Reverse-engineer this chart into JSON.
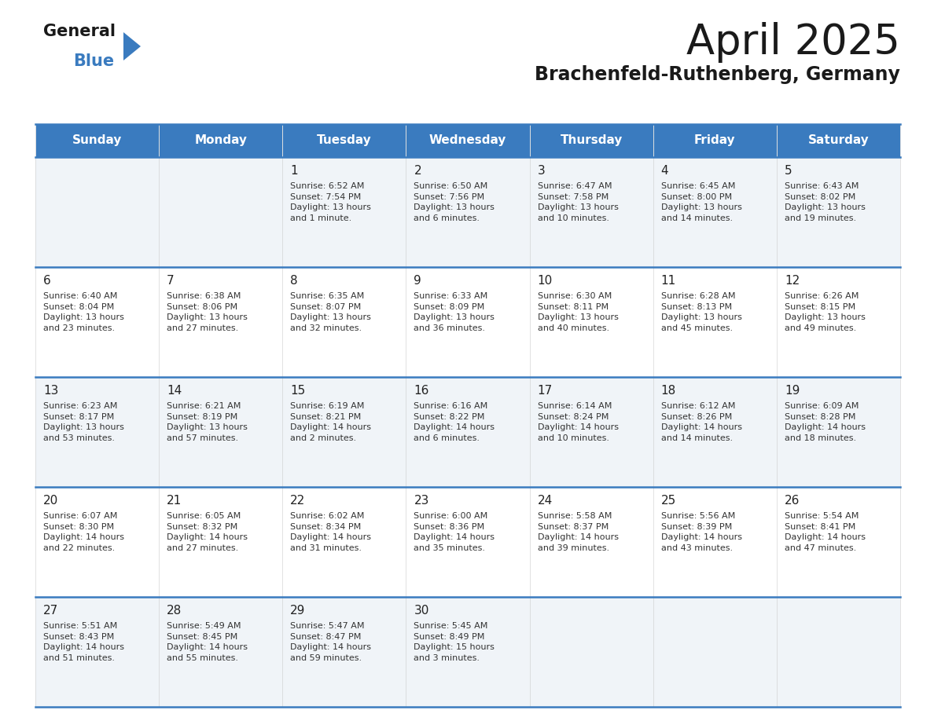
{
  "title": "April 2025",
  "subtitle": "Brachenfeld-Ruthenberg, Germany",
  "header_bg": "#3a7bbf",
  "header_text": "#ffffff",
  "cell_bg_odd": "#f0f4f8",
  "cell_bg_even": "#ffffff",
  "day_number_color": "#222222",
  "cell_text_color": "#333333",
  "line_color": "#3a7bbf",
  "days_of_week": [
    "Sunday",
    "Monday",
    "Tuesday",
    "Wednesday",
    "Thursday",
    "Friday",
    "Saturday"
  ],
  "weeks": [
    [
      {
        "day": "",
        "info": ""
      },
      {
        "day": "",
        "info": ""
      },
      {
        "day": "1",
        "info": "Sunrise: 6:52 AM\nSunset: 7:54 PM\nDaylight: 13 hours\nand 1 minute."
      },
      {
        "day": "2",
        "info": "Sunrise: 6:50 AM\nSunset: 7:56 PM\nDaylight: 13 hours\nand 6 minutes."
      },
      {
        "day": "3",
        "info": "Sunrise: 6:47 AM\nSunset: 7:58 PM\nDaylight: 13 hours\nand 10 minutes."
      },
      {
        "day": "4",
        "info": "Sunrise: 6:45 AM\nSunset: 8:00 PM\nDaylight: 13 hours\nand 14 minutes."
      },
      {
        "day": "5",
        "info": "Sunrise: 6:43 AM\nSunset: 8:02 PM\nDaylight: 13 hours\nand 19 minutes."
      }
    ],
    [
      {
        "day": "6",
        "info": "Sunrise: 6:40 AM\nSunset: 8:04 PM\nDaylight: 13 hours\nand 23 minutes."
      },
      {
        "day": "7",
        "info": "Sunrise: 6:38 AM\nSunset: 8:06 PM\nDaylight: 13 hours\nand 27 minutes."
      },
      {
        "day": "8",
        "info": "Sunrise: 6:35 AM\nSunset: 8:07 PM\nDaylight: 13 hours\nand 32 minutes."
      },
      {
        "day": "9",
        "info": "Sunrise: 6:33 AM\nSunset: 8:09 PM\nDaylight: 13 hours\nand 36 minutes."
      },
      {
        "day": "10",
        "info": "Sunrise: 6:30 AM\nSunset: 8:11 PM\nDaylight: 13 hours\nand 40 minutes."
      },
      {
        "day": "11",
        "info": "Sunrise: 6:28 AM\nSunset: 8:13 PM\nDaylight: 13 hours\nand 45 minutes."
      },
      {
        "day": "12",
        "info": "Sunrise: 6:26 AM\nSunset: 8:15 PM\nDaylight: 13 hours\nand 49 minutes."
      }
    ],
    [
      {
        "day": "13",
        "info": "Sunrise: 6:23 AM\nSunset: 8:17 PM\nDaylight: 13 hours\nand 53 minutes."
      },
      {
        "day": "14",
        "info": "Sunrise: 6:21 AM\nSunset: 8:19 PM\nDaylight: 13 hours\nand 57 minutes."
      },
      {
        "day": "15",
        "info": "Sunrise: 6:19 AM\nSunset: 8:21 PM\nDaylight: 14 hours\nand 2 minutes."
      },
      {
        "day": "16",
        "info": "Sunrise: 6:16 AM\nSunset: 8:22 PM\nDaylight: 14 hours\nand 6 minutes."
      },
      {
        "day": "17",
        "info": "Sunrise: 6:14 AM\nSunset: 8:24 PM\nDaylight: 14 hours\nand 10 minutes."
      },
      {
        "day": "18",
        "info": "Sunrise: 6:12 AM\nSunset: 8:26 PM\nDaylight: 14 hours\nand 14 minutes."
      },
      {
        "day": "19",
        "info": "Sunrise: 6:09 AM\nSunset: 8:28 PM\nDaylight: 14 hours\nand 18 minutes."
      }
    ],
    [
      {
        "day": "20",
        "info": "Sunrise: 6:07 AM\nSunset: 8:30 PM\nDaylight: 14 hours\nand 22 minutes."
      },
      {
        "day": "21",
        "info": "Sunrise: 6:05 AM\nSunset: 8:32 PM\nDaylight: 14 hours\nand 27 minutes."
      },
      {
        "day": "22",
        "info": "Sunrise: 6:02 AM\nSunset: 8:34 PM\nDaylight: 14 hours\nand 31 minutes."
      },
      {
        "day": "23",
        "info": "Sunrise: 6:00 AM\nSunset: 8:36 PM\nDaylight: 14 hours\nand 35 minutes."
      },
      {
        "day": "24",
        "info": "Sunrise: 5:58 AM\nSunset: 8:37 PM\nDaylight: 14 hours\nand 39 minutes."
      },
      {
        "day": "25",
        "info": "Sunrise: 5:56 AM\nSunset: 8:39 PM\nDaylight: 14 hours\nand 43 minutes."
      },
      {
        "day": "26",
        "info": "Sunrise: 5:54 AM\nSunset: 8:41 PM\nDaylight: 14 hours\nand 47 minutes."
      }
    ],
    [
      {
        "day": "27",
        "info": "Sunrise: 5:51 AM\nSunset: 8:43 PM\nDaylight: 14 hours\nand 51 minutes."
      },
      {
        "day": "28",
        "info": "Sunrise: 5:49 AM\nSunset: 8:45 PM\nDaylight: 14 hours\nand 55 minutes."
      },
      {
        "day": "29",
        "info": "Sunrise: 5:47 AM\nSunset: 8:47 PM\nDaylight: 14 hours\nand 59 minutes."
      },
      {
        "day": "30",
        "info": "Sunrise: 5:45 AM\nSunset: 8:49 PM\nDaylight: 15 hours\nand 3 minutes."
      },
      {
        "day": "",
        "info": ""
      },
      {
        "day": "",
        "info": ""
      },
      {
        "day": "",
        "info": ""
      }
    ]
  ],
  "logo_general_color": "#1a1a1a",
  "logo_blue_color": "#3a7bbf",
  "logo_triangle_color": "#3a7bbf",
  "title_fontsize": 38,
  "subtitle_fontsize": 17,
  "header_fontsize": 11,
  "day_num_fontsize": 11,
  "cell_text_fontsize": 8
}
